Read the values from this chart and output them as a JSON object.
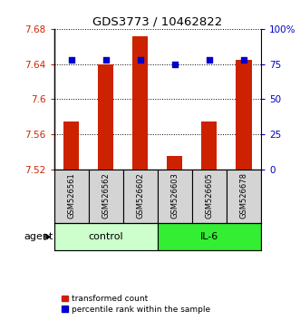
{
  "title": "GDS3773 / 10462822",
  "categories": [
    "GSM526561",
    "GSM526562",
    "GSM526602",
    "GSM526603",
    "GSM526605",
    "GSM526678"
  ],
  "bar_values": [
    7.575,
    7.64,
    7.672,
    7.535,
    7.575,
    7.645
  ],
  "percentile_values": [
    78,
    78,
    78,
    75,
    78,
    78
  ],
  "bar_color": "#cc2200",
  "percentile_color": "#0000cc",
  "ymin": 7.52,
  "ymax": 7.68,
  "yticks_left": [
    7.52,
    7.56,
    7.6,
    7.64,
    7.68
  ],
  "yticks_right": [
    0,
    25,
    50,
    75,
    100
  ],
  "yticks_right_labels": [
    "0",
    "25",
    "50",
    "75",
    "100%"
  ],
  "groups": [
    {
      "label": "control",
      "indices": [
        0,
        1,
        2
      ],
      "color": "#ccffcc"
    },
    {
      "label": "IL-6",
      "indices": [
        3,
        4,
        5
      ],
      "color": "#33ee33"
    }
  ],
  "agent_label": "agent",
  "legend_bar_label": "transformed count",
  "legend_pct_label": "percentile rank within the sample",
  "bar_width": 0.45
}
